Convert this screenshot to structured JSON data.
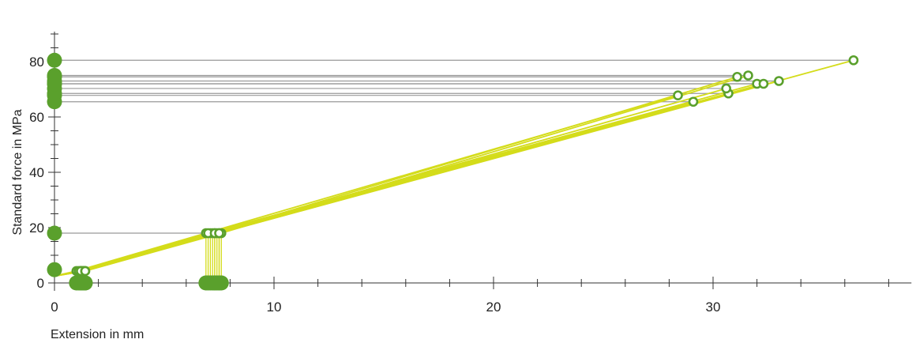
{
  "chart_data": {
    "type": "line",
    "xlabel": "Extension in mm",
    "ylabel": "Standard force in MPa",
    "xlim": [
      0,
      39
    ],
    "ylim": [
      0,
      90
    ],
    "x_ticks": [
      0,
      10,
      20,
      30
    ],
    "y_ticks": [
      0,
      20,
      40,
      60,
      80
    ],
    "x_minor_step": 2,
    "y_minor_step": 5,
    "grid": false,
    "colors": {
      "curve": "#d4dc1a",
      "marker": "#5aa02c",
      "guide": "#999999",
      "axis": "#333333"
    },
    "preload_force": 4.8,
    "reference_force": 18,
    "series": [
      {
        "values": [
          [
            0,
            2.5
          ],
          [
            1.35,
            4.3
          ],
          [
            7.1,
            18
          ],
          [
            29.1,
            65.5
          ]
        ]
      },
      {
        "values": [
          [
            0,
            2.5
          ],
          [
            1.0,
            4.3
          ],
          [
            6.9,
            18
          ],
          [
            28.4,
            67.8
          ]
        ]
      },
      {
        "values": [
          [
            0,
            2.5
          ],
          [
            1.2,
            4.3
          ],
          [
            7.3,
            18
          ],
          [
            30.7,
            68.5
          ]
        ]
      },
      {
        "values": [
          [
            0,
            2.5
          ],
          [
            1.3,
            4.3
          ],
          [
            7.2,
            18
          ],
          [
            30.6,
            70.3
          ]
        ]
      },
      {
        "values": [
          [
            0,
            2.5
          ],
          [
            1.2,
            4.3
          ],
          [
            7.0,
            18
          ],
          [
            32.0,
            72.0
          ]
        ]
      },
      {
        "values": [
          [
            0,
            2.5
          ],
          [
            1.3,
            4.3
          ],
          [
            7.4,
            18
          ],
          [
            32.3,
            72.0
          ]
        ]
      },
      {
        "values": [
          [
            0,
            2.5
          ],
          [
            1.1,
            4.3
          ],
          [
            7.5,
            18
          ],
          [
            33.0,
            73.0
          ]
        ]
      },
      {
        "values": [
          [
            0,
            2.5
          ],
          [
            1.2,
            4.3
          ],
          [
            7.3,
            18
          ],
          [
            31.1,
            74.5
          ]
        ]
      },
      {
        "values": [
          [
            0,
            2.5
          ],
          [
            1.4,
            4.3
          ],
          [
            7.6,
            18
          ],
          [
            31.6,
            75.0
          ]
        ]
      },
      {
        "values": [
          [
            0,
            2.5
          ],
          [
            1.4,
            4.3
          ],
          [
            7.5,
            18
          ],
          [
            36.4,
            80.5
          ]
        ]
      }
    ]
  }
}
